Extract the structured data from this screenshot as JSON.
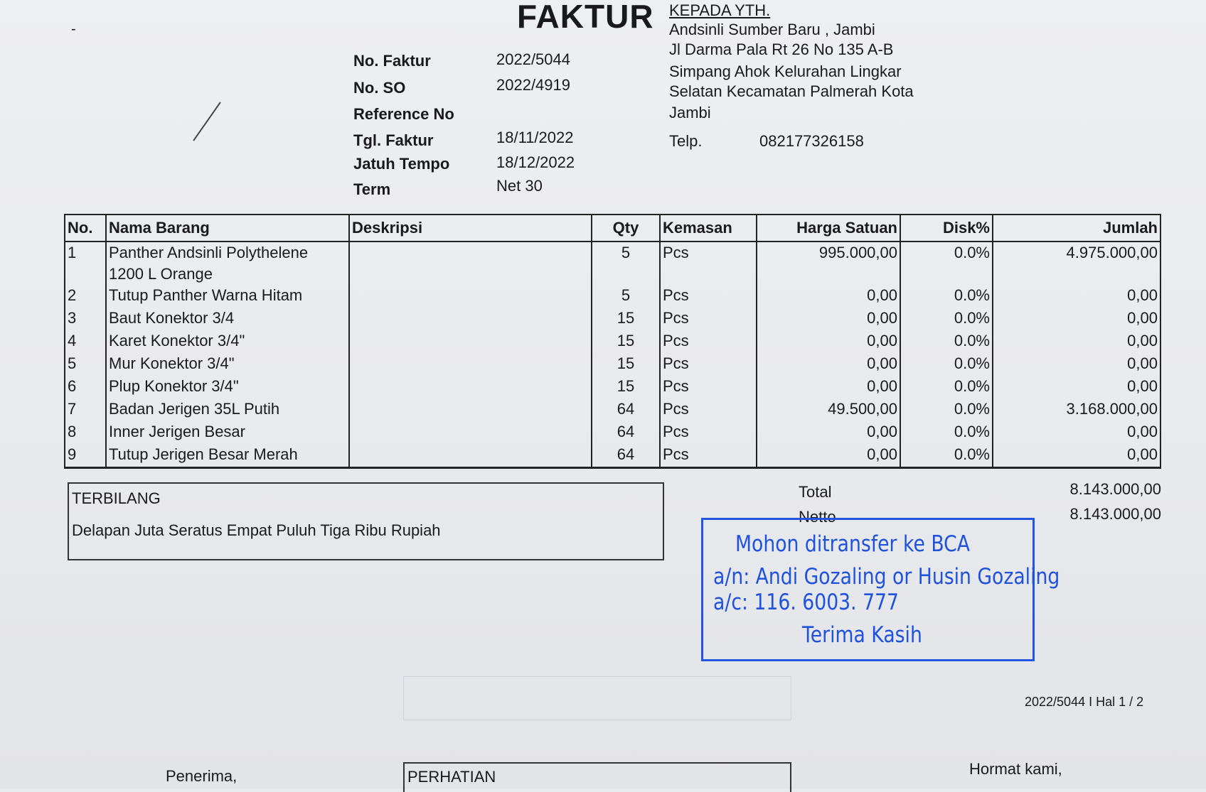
{
  "title": "FAKTUR",
  "meta": [
    {
      "label": "No. Faktur",
      "value": "2022/5044"
    },
    {
      "label": "No. SO",
      "value": "2022/4919"
    },
    {
      "label": "Reference No",
      "value": ""
    },
    {
      "label": "Tgl. Faktur",
      "value": "18/11/2022"
    },
    {
      "label": "Jatuh Tempo",
      "value": "18/12/2022"
    },
    {
      "label": "Term",
      "value": "Net 30"
    }
  ],
  "recipient": {
    "heading": "KEPADA YTH.",
    "lines": [
      "Andsinli Sumber Baru , Jambi",
      "Jl Darma Pala Rt 26 No 135 A-B",
      "Simpang Ahok Kelurahan Lingkar",
      "Selatan Kecamatan Palmerah Kota",
      "Jambi"
    ],
    "phone_label": "Telp.",
    "phone": "082177326158"
  },
  "table": {
    "headers": [
      "No.",
      "Nama Barang",
      "Deskripsi",
      "Qty",
      "Kemasan",
      "Harga Satuan",
      "Disk%",
      "Jumlah"
    ],
    "rows": [
      {
        "no": "1",
        "name": "Panther Andsinli Polythelene",
        "name2": "1200 L Orange",
        "desc": "",
        "qty": "5",
        "unit": "Pcs",
        "price": "995.000,00",
        "disc": "0.0%",
        "total": "4.975.000,00"
      },
      {
        "no": "2",
        "name": "Tutup Panther Warna Hitam",
        "desc": "",
        "qty": "5",
        "unit": "Pcs",
        "price": "0,00",
        "disc": "0.0%",
        "total": "0,00"
      },
      {
        "no": "3",
        "name": "Baut Konektor 3/4",
        "desc": "",
        "qty": "15",
        "unit": "Pcs",
        "price": "0,00",
        "disc": "0.0%",
        "total": "0,00"
      },
      {
        "no": "4",
        "name": "Karet Konektor 3/4\"",
        "desc": "",
        "qty": "15",
        "unit": "Pcs",
        "price": "0,00",
        "disc": "0.0%",
        "total": "0,00"
      },
      {
        "no": "5",
        "name": "Mur Konektor 3/4\"",
        "desc": "",
        "qty": "15",
        "unit": "Pcs",
        "price": "0,00",
        "disc": "0.0%",
        "total": "0,00"
      },
      {
        "no": "6",
        "name": "Plup Konektor 3/4\"",
        "desc": "",
        "qty": "15",
        "unit": "Pcs",
        "price": "0,00",
        "disc": "0.0%",
        "total": "0,00"
      },
      {
        "no": "7",
        "name": "Badan Jerigen 35L Putih",
        "desc": "",
        "qty": "64",
        "unit": "Pcs",
        "price": "49.500,00",
        "disc": "0.0%",
        "total": "3.168.000,00"
      },
      {
        "no": "8",
        "name": "Inner Jerigen Besar",
        "desc": "",
        "qty": "64",
        "unit": "Pcs",
        "price": "0,00",
        "disc": "0.0%",
        "total": "0,00"
      },
      {
        "no": "9",
        "name": "Tutup Jerigen Besar Merah",
        "desc": "",
        "qty": "64",
        "unit": "Pcs",
        "price": "0,00",
        "disc": "0.0%",
        "total": "0,00"
      }
    ]
  },
  "terbilang": {
    "label": "TERBILANG",
    "text": "Delapan Juta Seratus Empat Puluh Tiga Ribu Rupiah"
  },
  "totals": {
    "total_label": "Total",
    "total": "8.143.000,00",
    "netto_label": "Netto",
    "netto": "8.143.000,00"
  },
  "stamp": {
    "color": "#1f52dc",
    "line1": "Mohon ditransfer ke BCA",
    "line2": "a/n: Andi Gozaling or Husin Gozaling",
    "line3": "a/c: 116. 6003. 777",
    "line4": "Terima Kasih"
  },
  "footer": {
    "page_ref": "2022/5044 I Hal 1 / 2",
    "receiver": "Penerima,",
    "attention": "PERHATIAN",
    "regards": "Hormat kami,"
  }
}
